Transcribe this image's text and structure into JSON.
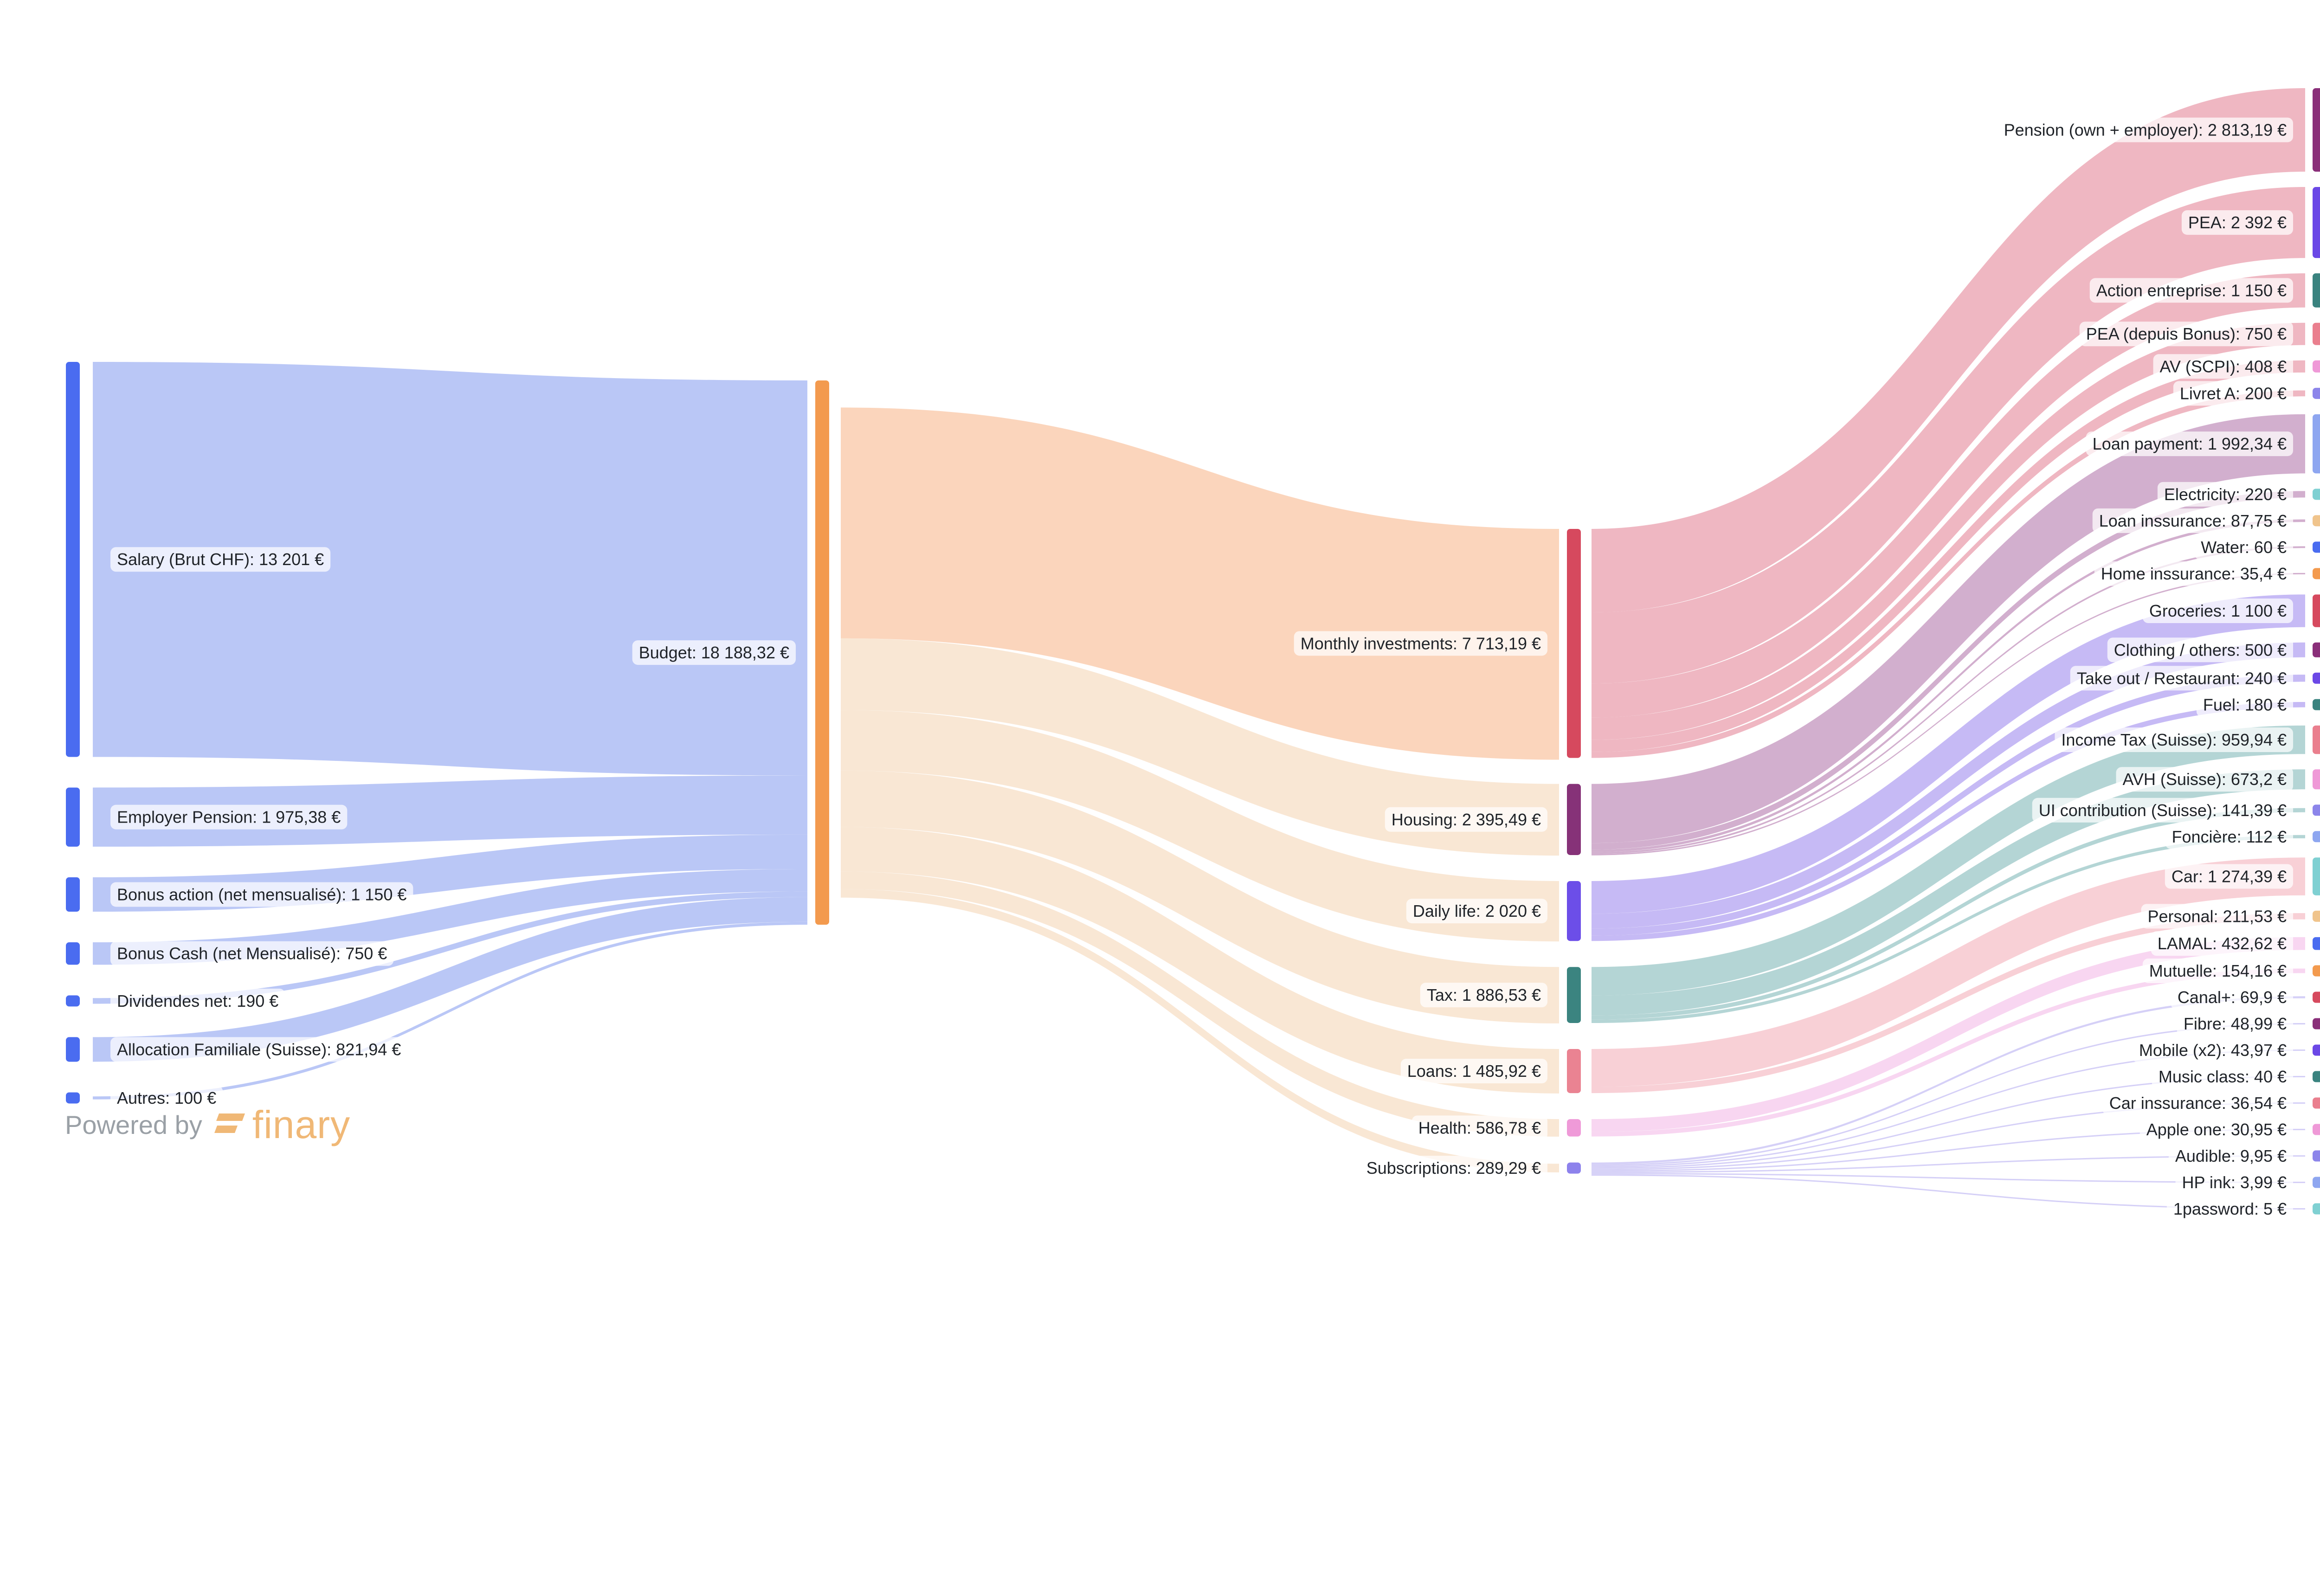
{
  "nodes": [
    {
      "id": "salary",
      "label": "Salary (Brut CHF): 13 201 €",
      "value": 13201,
      "column": 0,
      "color": "#4a6cf0"
    },
    {
      "id": "employer_pension",
      "label": "Employer Pension: 1 975,38 €",
      "value": 1975.38,
      "column": 0,
      "color": "#4a6cf0"
    },
    {
      "id": "bonus_action",
      "label": "Bonus action (net mensualisé): 1 150 €",
      "value": 1150,
      "column": 0,
      "color": "#4a6cf0"
    },
    {
      "id": "bonus_cash",
      "label": "Bonus Cash (net Mensualisé): 750 €",
      "value": 750,
      "column": 0,
      "color": "#4a6cf0"
    },
    {
      "id": "dividendes",
      "label": "Dividendes net: 190 €",
      "value": 190,
      "column": 0,
      "color": "#4a6cf0"
    },
    {
      "id": "allocation",
      "label": "Allocation Familiale (Suisse): 821,94 €",
      "value": 821.94,
      "column": 0,
      "color": "#4a6cf0"
    },
    {
      "id": "autres",
      "label": "Autres: 100 €",
      "value": 100,
      "column": 0,
      "color": "#4a6cf0"
    },
    {
      "id": "budget",
      "label": "Budget: 18 188,32 €",
      "value": 18188.32,
      "column": 1,
      "color": "#f39a4e"
    },
    {
      "id": "monthly_investments",
      "label": "Monthly investments: 7 713,19 €",
      "value": 7713.19,
      "column": 2,
      "color": "#d6495e"
    },
    {
      "id": "housing",
      "label": "Housing: 2 395,49 €",
      "value": 2395.49,
      "column": 2,
      "color": "#863278"
    },
    {
      "id": "daily_life",
      "label": "Daily life: 2 020 €",
      "value": 2020,
      "column": 2,
      "color": "#6c4ee8"
    },
    {
      "id": "tax",
      "label": "Tax: 1 886,53 €",
      "value": 1886.53,
      "column": 2,
      "color": "#3b8480"
    },
    {
      "id": "loans",
      "label": "Loans: 1 485,92 €",
      "value": 1485.92,
      "column": 2,
      "color": "#ea8392"
    },
    {
      "id": "health",
      "label": "Health: 586,78 €",
      "value": 586.78,
      "column": 2,
      "color": "#ef9ad8"
    },
    {
      "id": "subscriptions",
      "label": "Subscriptions: 289,29 €",
      "value": 289.29,
      "column": 2,
      "color": "#8d82ec"
    },
    {
      "id": "pension_own",
      "label": "Pension (own + employer): 2 813,19 €",
      "value": 2813.19,
      "column": 3,
      "color": "#8a2f79"
    },
    {
      "id": "pea",
      "label": "PEA: 2 392 €",
      "value": 2392,
      "column": 3,
      "color": "#6b48e6"
    },
    {
      "id": "action_entreprise",
      "label": "Action entreprise: 1 150 €",
      "value": 1150,
      "column": 3,
      "color": "#3a837f"
    },
    {
      "id": "pea_bonus",
      "label": "PEA (depuis Bonus): 750 €",
      "value": 750,
      "column": 3,
      "color": "#ea7f8e"
    },
    {
      "id": "av_scpi",
      "label": "AV (SCPI): 408 €",
      "value": 408,
      "column": 3,
      "color": "#ef99d7"
    },
    {
      "id": "livret_a",
      "label": "Livret A: 200 €",
      "value": 200,
      "column": 3,
      "color": "#8c85ea"
    },
    {
      "id": "loan_payment",
      "label": "Loan payment: 1 992,34 €",
      "value": 1992.34,
      "column": 3,
      "color": "#8ea6f0"
    },
    {
      "id": "electricity",
      "label": "Electricity: 220 €",
      "value": 220,
      "column": 3,
      "color": "#7fd0d2"
    },
    {
      "id": "loan_insurance",
      "label": "Loan inssurance: 87,75 €",
      "value": 87.75,
      "column": 3,
      "color": "#f0c48c"
    },
    {
      "id": "water",
      "label": "Water: 60 €",
      "value": 60,
      "column": 3,
      "color": "#4a6cf0"
    },
    {
      "id": "home_insurance",
      "label": "Home inssurance: 35,4 €",
      "value": 35.4,
      "column": 3,
      "color": "#f39a4e"
    },
    {
      "id": "groceries",
      "label": "Groceries: 1 100 €",
      "value": 1100,
      "column": 3,
      "color": "#d6495e"
    },
    {
      "id": "clothing",
      "label": "Clothing / others: 500 €",
      "value": 500,
      "column": 3,
      "color": "#8a2f79"
    },
    {
      "id": "takeout",
      "label": "Take out / Restaurant: 240 €",
      "value": 240,
      "column": 3,
      "color": "#6b48e6"
    },
    {
      "id": "fuel",
      "label": "Fuel: 180 €",
      "value": 180,
      "column": 3,
      "color": "#3a837f"
    },
    {
      "id": "income_tax",
      "label": "Income Tax (Suisse): 959,94 €",
      "value": 959.94,
      "column": 3,
      "color": "#ea7f8e"
    },
    {
      "id": "avh",
      "label": "AVH (Suisse): 673,2 €",
      "value": 673.2,
      "column": 3,
      "color": "#ef99d7"
    },
    {
      "id": "ui_contribution",
      "label": "UI contribution (Suisse): 141,39 €",
      "value": 141.39,
      "column": 3,
      "color": "#8c85ea"
    },
    {
      "id": "fonciere",
      "label": "Foncière: 112 €",
      "value": 112,
      "column": 3,
      "color": "#8ea6f0"
    },
    {
      "id": "car",
      "label": "Car: 1 274,39 €",
      "value": 1274.39,
      "column": 3,
      "color": "#7fd0d2"
    },
    {
      "id": "personal",
      "label": "Personal: 211,53 €",
      "value": 211.53,
      "column": 3,
      "color": "#f0c48c"
    },
    {
      "id": "lamal",
      "label": "LAMAL: 432,62 €",
      "value": 432.62,
      "column": 3,
      "color": "#4a6cf0"
    },
    {
      "id": "mutuelle",
      "label": "Mutuelle: 154,16 €",
      "value": 154.16,
      "column": 3,
      "color": "#f39a4e"
    },
    {
      "id": "canal",
      "label": "Canal+: 69,9 €",
      "value": 69.9,
      "column": 3,
      "color": "#d6495e"
    },
    {
      "id": "fibre",
      "label": "Fibre: 48,99 €",
      "value": 48.99,
      "column": 3,
      "color": "#8a2f79"
    },
    {
      "id": "mobile",
      "label": "Mobile (x2): 43,97 €",
      "value": 43.97,
      "column": 3,
      "color": "#6b48e6"
    },
    {
      "id": "music_class",
      "label": "Music class: 40 €",
      "value": 40,
      "column": 3,
      "color": "#3a837f"
    },
    {
      "id": "car_insurance",
      "label": "Car inssurance: 36,54 €",
      "value": 36.54,
      "column": 3,
      "color": "#ea7f8e"
    },
    {
      "id": "apple_one",
      "label": "Apple one: 30,95 €",
      "value": 30.95,
      "column": 3,
      "color": "#ef99d7"
    },
    {
      "id": "audible",
      "label": "Audible: 9,95 €",
      "value": 9.95,
      "column": 3,
      "color": "#8c85ea"
    },
    {
      "id": "hp_ink",
      "label": "HP ink: 3,99 €",
      "value": 3.99,
      "column": 3,
      "color": "#8ea6f0"
    },
    {
      "id": "onepassword",
      "label": "1password: 5 €",
      "value": 5,
      "column": 3,
      "color": "#7fd0d2"
    }
  ],
  "links": [
    {
      "source": "salary",
      "target": "budget",
      "value": 13201
    },
    {
      "source": "employer_pension",
      "target": "budget",
      "value": 1975.38
    },
    {
      "source": "bonus_action",
      "target": "budget",
      "value": 1150
    },
    {
      "source": "bonus_cash",
      "target": "budget",
      "value": 750
    },
    {
      "source": "dividendes",
      "target": "budget",
      "value": 190
    },
    {
      "source": "allocation",
      "target": "budget",
      "value": 821.94
    },
    {
      "source": "autres",
      "target": "budget",
      "value": 100
    },
    {
      "source": "budget",
      "target": "monthly_investments",
      "value": 7713.19
    },
    {
      "source": "budget",
      "target": "housing",
      "value": 2395.49
    },
    {
      "source": "budget",
      "target": "daily_life",
      "value": 2020
    },
    {
      "source": "budget",
      "target": "tax",
      "value": 1886.53
    },
    {
      "source": "budget",
      "target": "loans",
      "value": 1485.92
    },
    {
      "source": "budget",
      "target": "health",
      "value": 586.78
    },
    {
      "source": "budget",
      "target": "subscriptions",
      "value": 289.29
    },
    {
      "source": "monthly_investments",
      "target": "pension_own",
      "value": 2813.19
    },
    {
      "source": "monthly_investments",
      "target": "pea",
      "value": 2392
    },
    {
      "source": "monthly_investments",
      "target": "action_entreprise",
      "value": 1150
    },
    {
      "source": "monthly_investments",
      "target": "pea_bonus",
      "value": 750
    },
    {
      "source": "monthly_investments",
      "target": "av_scpi",
      "value": 408
    },
    {
      "source": "monthly_investments",
      "target": "livret_a",
      "value": 200
    },
    {
      "source": "housing",
      "target": "loan_payment",
      "value": 1992.34
    },
    {
      "source": "housing",
      "target": "electricity",
      "value": 220
    },
    {
      "source": "housing",
      "target": "loan_insurance",
      "value": 87.75
    },
    {
      "source": "housing",
      "target": "water",
      "value": 60
    },
    {
      "source": "housing",
      "target": "home_insurance",
      "value": 35.4
    },
    {
      "source": "daily_life",
      "target": "groceries",
      "value": 1100
    },
    {
      "source": "daily_life",
      "target": "clothing",
      "value": 500
    },
    {
      "source": "daily_life",
      "target": "takeout",
      "value": 240
    },
    {
      "source": "daily_life",
      "target": "fuel",
      "value": 180
    },
    {
      "source": "tax",
      "target": "income_tax",
      "value": 959.94
    },
    {
      "source": "tax",
      "target": "avh",
      "value": 673.2
    },
    {
      "source": "tax",
      "target": "ui_contribution",
      "value": 141.39
    },
    {
      "source": "tax",
      "target": "fonciere",
      "value": 112
    },
    {
      "source": "loans",
      "target": "car",
      "value": 1274.39
    },
    {
      "source": "loans",
      "target": "personal",
      "value": 211.53
    },
    {
      "source": "health",
      "target": "lamal",
      "value": 432.62
    },
    {
      "source": "health",
      "target": "mutuelle",
      "value": 154.16
    },
    {
      "source": "subscriptions",
      "target": "canal",
      "value": 69.9
    },
    {
      "source": "subscriptions",
      "target": "fibre",
      "value": 48.99
    },
    {
      "source": "subscriptions",
      "target": "mobile",
      "value": 43.97
    },
    {
      "source": "subscriptions",
      "target": "music_class",
      "value": 40
    },
    {
      "source": "subscriptions",
      "target": "car_insurance",
      "value": 36.54
    },
    {
      "source": "subscriptions",
      "target": "apple_one",
      "value": 30.95
    },
    {
      "source": "subscriptions",
      "target": "audible",
      "value": 9.95
    },
    {
      "source": "subscriptions",
      "target": "hp_ink",
      "value": 3.99
    },
    {
      "source": "subscriptions",
      "target": "onepassword",
      "value": 5
    }
  ],
  "colors": {
    "incoming_link": "#b6c4f6",
    "budget_to_investments": "#fbd3b8",
    "budget_to_others": "#f9e6d2",
    "investments_link": "#eeb3bf",
    "housing_link": "#d0abcb",
    "daily_life_link": "#c3b6f4",
    "tax_link": "#b0d3d3",
    "loans_link": "#f8cdd4",
    "health_link": "#f8d4f0",
    "subscriptions_link": "#d3cef7"
  },
  "footer": {
    "powered_by": "Powered by",
    "brand_name": "finary",
    "brand_icon": "finary-logo-icon"
  }
}
